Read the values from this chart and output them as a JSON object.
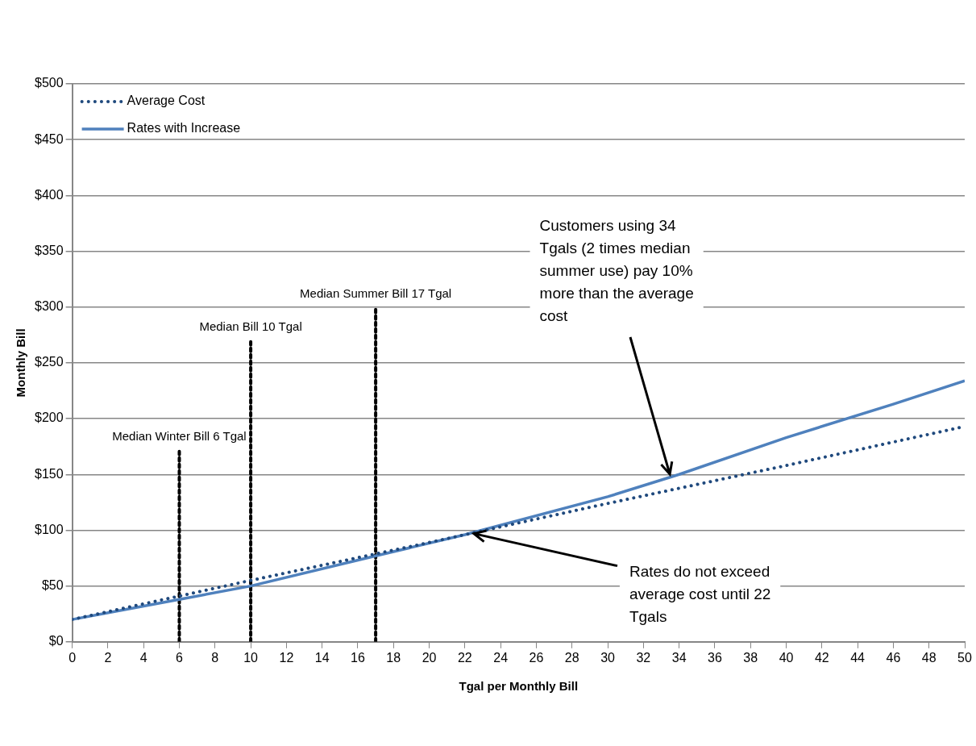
{
  "chart_data": {
    "type": "line",
    "xlabel": "Tgal per Monthly Bill",
    "ylabel": "Monthly Bill",
    "xlim": [
      0,
      50
    ],
    "xticks": [
      0,
      2,
      4,
      6,
      8,
      10,
      12,
      14,
      16,
      18,
      20,
      22,
      24,
      26,
      28,
      30,
      32,
      34,
      36,
      38,
      40,
      42,
      44,
      46,
      48,
      50
    ],
    "ylim": [
      0,
      500
    ],
    "yticks": [
      {
        "value": 0,
        "label": "$0"
      },
      {
        "value": 50,
        "label": "$50"
      },
      {
        "value": 100,
        "label": "$100"
      },
      {
        "value": 150,
        "label": "$150"
      },
      {
        "value": 200,
        "label": "$200"
      },
      {
        "value": 250,
        "label": "$250"
      },
      {
        "value": 300,
        "label": "$300"
      },
      {
        "value": 350,
        "label": "$350"
      },
      {
        "value": 400,
        "label": "$400"
      },
      {
        "value": 450,
        "label": "$450"
      },
      {
        "value": 500,
        "label": "$500"
      }
    ],
    "grid": "y",
    "legend": "top left",
    "marker": "none",
    "series": [
      {
        "name": "Average Cost",
        "color": "#1f497d",
        "line_style": "dotted",
        "x": [
          0,
          10,
          20,
          30,
          40,
          50
        ],
        "values": [
          20,
          55,
          89,
          124,
          158,
          193
        ]
      },
      {
        "name": "Rates with Increase",
        "color": "#4f81bd",
        "line_style": "solid",
        "x": [
          0,
          6,
          10,
          17,
          22,
          30,
          34,
          40,
          46,
          50
        ],
        "values": [
          20,
          38,
          50,
          77,
          96,
          130,
          150,
          183,
          213,
          234
        ]
      },
      {
        "color": "#000000",
        "line_style": "dotted",
        "x": [
          6,
          6
        ],
        "values": [
          0,
          172
        ]
      },
      {
        "color": "#000000",
        "line_style": "dotted",
        "x": [
          10,
          10
        ],
        "values": [
          0,
          270
        ]
      },
      {
        "color": "#000000",
        "line_style": "dotted",
        "x": [
          17,
          17
        ],
        "values": [
          0,
          300
        ]
      }
    ],
    "annotations": [
      {
        "text": "Median Winter Bill 6 Tgal",
        "x": 6,
        "y": 172
      },
      {
        "text": "Median Bill 10 Tgal",
        "x": 10,
        "y": 270
      },
      {
        "text": "Median Summer Bill 17 Tgal",
        "x": 17,
        "y": 300
      },
      {
        "text": "Customers using 34 Tgals (2 times median summer use) pay 10% more than the average cost",
        "x": 33.5,
        "y": 150
      },
      {
        "text": "Rates do not exceed average cost until 22 Tgals",
        "x": 22.5,
        "y": 97
      }
    ]
  }
}
